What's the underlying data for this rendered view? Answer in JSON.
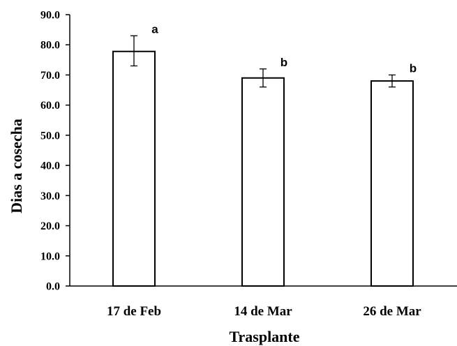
{
  "chart_data": {
    "type": "bar",
    "title": "",
    "xlabel": "Trasplante",
    "ylabel": "Dias a cosecha",
    "categories": [
      "17 de Feb",
      "14 de Mar",
      "26 de Mar"
    ],
    "values": [
      77.8,
      69.0,
      68.0
    ],
    "error_low": [
      73.0,
      66.0,
      66.0
    ],
    "error_high": [
      83.0,
      72.0,
      70.0
    ],
    "significance_letters": [
      "a",
      "b",
      "b"
    ],
    "ylim": [
      0,
      90
    ],
    "ytick_values": [
      0,
      10,
      20,
      30,
      40,
      50,
      60,
      70,
      80,
      90
    ],
    "ytick_labels": [
      "0.0",
      "10.0",
      "20.0",
      "30.0",
      "40.0",
      "50.0",
      "60.0",
      "70.0",
      "80.0",
      "90.0"
    ],
    "grid": false,
    "legend": "none",
    "bar_fill": "#ffffff",
    "bar_stroke": "#000000",
    "axis_color": "#000000"
  }
}
